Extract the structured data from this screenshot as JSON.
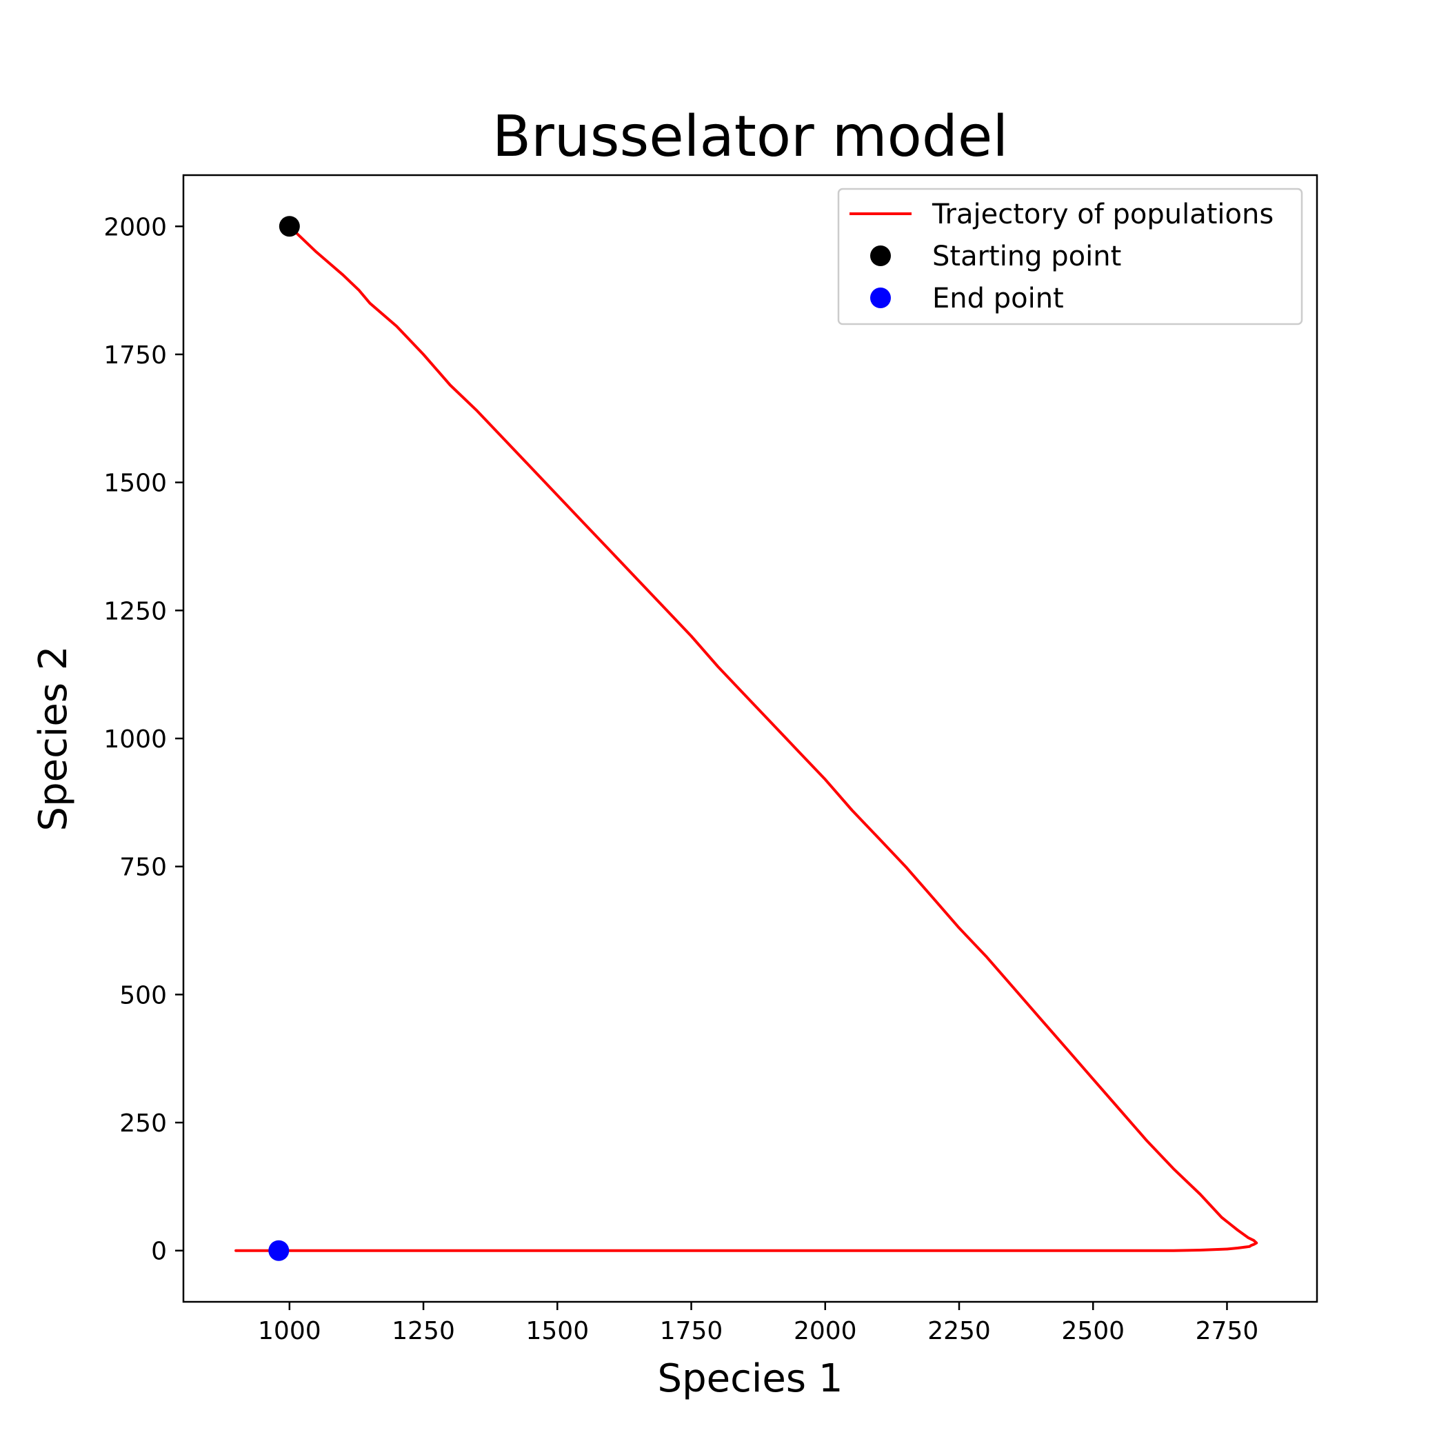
{
  "chart_data": {
    "type": "line",
    "title": "Brusselator model",
    "xlabel": "Species 1",
    "ylabel": "Species 2",
    "xlim": [
      802,
      2918
    ],
    "ylim": [
      -100,
      2100
    ],
    "xticks": [
      1000,
      1250,
      1500,
      1750,
      2000,
      2250,
      2500,
      2750
    ],
    "yticks": [
      0,
      250,
      500,
      750,
      1000,
      1250,
      1500,
      1750,
      2000
    ],
    "grid": false,
    "legend_position": "top-right",
    "series": [
      {
        "name": "Trajectory of populations",
        "kind": "line",
        "color": "#ff0000",
        "x": [
          1000,
          1050,
          1100,
          1130,
          1150,
          1200,
          1250,
          1300,
          1350,
          1400,
          1450,
          1500,
          1550,
          1600,
          1650,
          1700,
          1750,
          1800,
          1850,
          1900,
          1950,
          2000,
          2050,
          2100,
          2150,
          2200,
          2250,
          2300,
          2350,
          2400,
          2450,
          2500,
          2550,
          2600,
          2650,
          2700,
          2740,
          2770,
          2790,
          2800,
          2805,
          2800,
          2795,
          2792,
          2785,
          2770,
          2750,
          2700,
          2650,
          2640,
          2500,
          2300,
          2000,
          1700,
          1400,
          1100,
          1000,
          980,
          900
        ],
        "y": [
          2000,
          1950,
          1905,
          1875,
          1850,
          1805,
          1750,
          1690,
          1640,
          1585,
          1530,
          1475,
          1420,
          1365,
          1310,
          1255,
          1200,
          1140,
          1085,
          1030,
          975,
          920,
          860,
          805,
          750,
          690,
          630,
          575,
          515,
          455,
          395,
          335,
          275,
          215,
          160,
          110,
          65,
          40,
          25,
          20,
          15,
          12,
          10,
          8,
          7,
          5,
          3,
          1,
          0,
          0,
          0,
          0,
          0,
          0,
          0,
          0,
          0,
          0,
          0
        ]
      },
      {
        "name": "Starting point",
        "kind": "point",
        "color": "#000000",
        "x": [
          1000
        ],
        "y": [
          2000
        ]
      },
      {
        "name": "End point",
        "kind": "point",
        "color": "#0000ff",
        "x": [
          980
        ],
        "y": [
          0
        ]
      }
    ]
  }
}
